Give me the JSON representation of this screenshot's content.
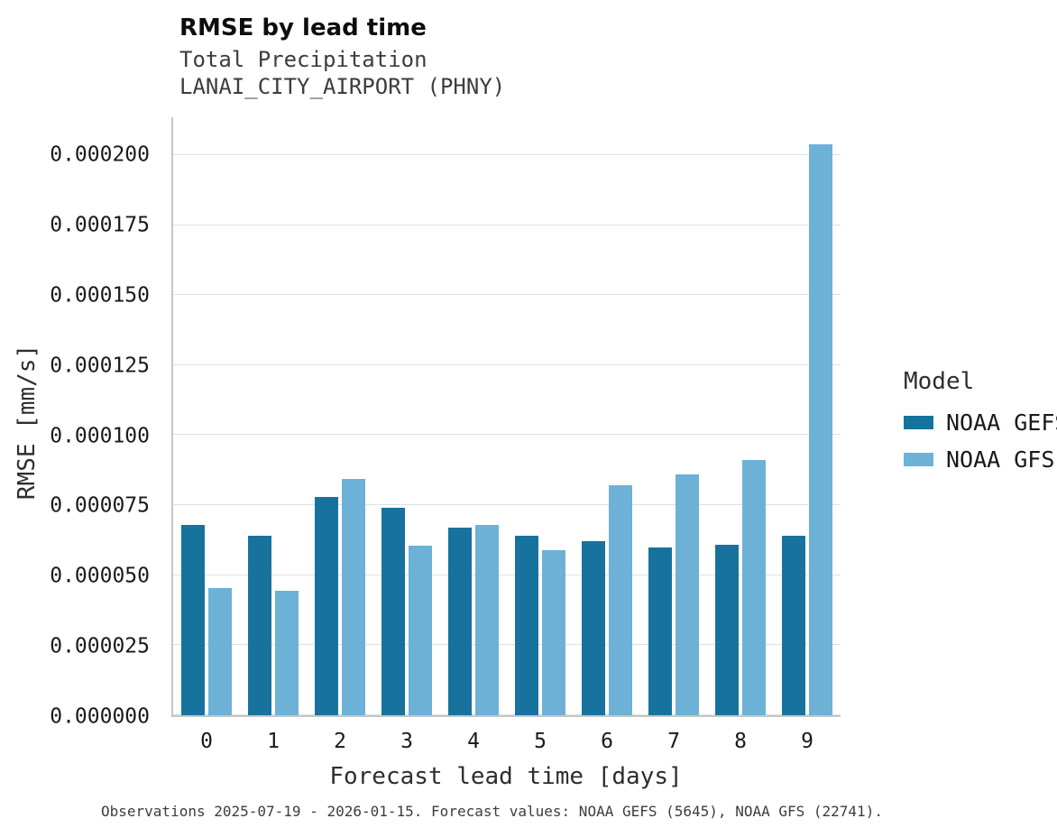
{
  "header": {
    "title": "RMSE by lead time",
    "subtitle_line1": "Total Precipitation",
    "subtitle_line2": "LANAI_CITY_AIRPORT (PHNY)"
  },
  "chart_data": {
    "type": "bar",
    "title": "RMSE by lead time",
    "xlabel": "Forecast lead time [days]",
    "ylabel": "RMSE [mm/s]",
    "categories": [
      "0",
      "1",
      "2",
      "3",
      "4",
      "5",
      "6",
      "7",
      "8",
      "9"
    ],
    "series": [
      {
        "name": "NOAA GEFS",
        "color": "#17739d",
        "values": [
          6.8e-05,
          6.4e-05,
          7.8e-05,
          7.4e-05,
          6.7e-05,
          6.4e-05,
          6.2e-05,
          6e-05,
          6.1e-05,
          6.4e-05
        ]
      },
      {
        "name": "NOAA GFS",
        "color": "#6db1d6",
        "values": [
          4.55e-05,
          4.45e-05,
          8.45e-05,
          6.05e-05,
          6.8e-05,
          5.9e-05,
          8.2e-05,
          8.6e-05,
          9.1e-05,
          0.000204
        ]
      }
    ],
    "yticks": [
      {
        "value": 0.0,
        "label": "0.000000"
      },
      {
        "value": 2.5e-05,
        "label": "0.000025"
      },
      {
        "value": 5e-05,
        "label": "0.000050"
      },
      {
        "value": 7.5e-05,
        "label": "0.000075"
      },
      {
        "value": 0.0001,
        "label": "0.000100"
      },
      {
        "value": 0.000125,
        "label": "0.000125"
      },
      {
        "value": 0.00015,
        "label": "0.000150"
      },
      {
        "value": 0.000175,
        "label": "0.000175"
      },
      {
        "value": 0.0002,
        "label": "0.000200"
      }
    ],
    "ylim": [
      0,
      0.0002135
    ],
    "grid": "horizontal",
    "legend": {
      "title": "Model",
      "position": "right",
      "entries": [
        "NOAA GEFS",
        "NOAA GFS"
      ]
    }
  },
  "footer": {
    "caption": "Observations 2025-07-19 - 2026-01-15. Forecast values: NOAA GEFS (5645), NOAA GFS (22741)."
  }
}
